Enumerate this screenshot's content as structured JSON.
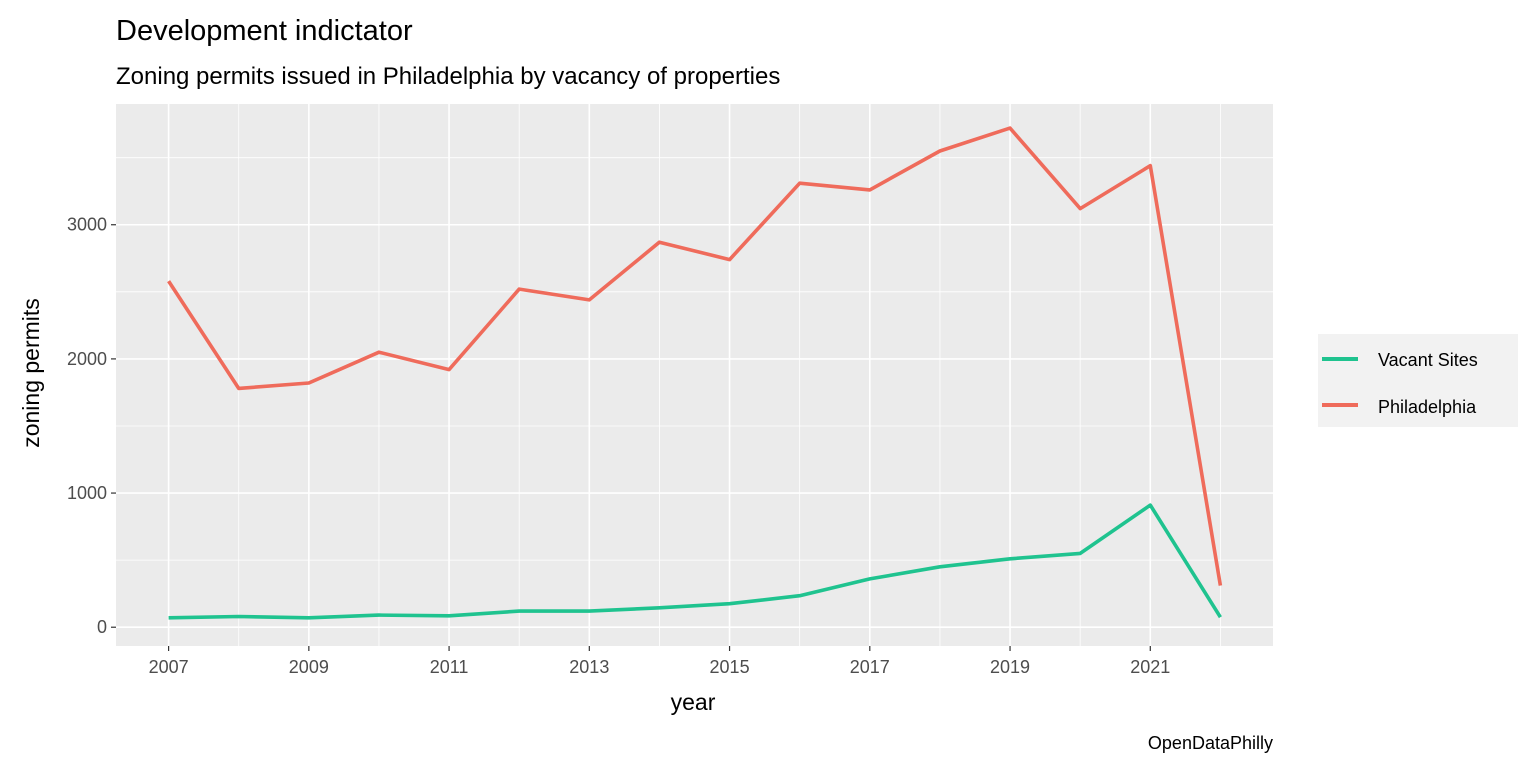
{
  "chart_data": {
    "type": "line",
    "title": "Development indictator",
    "subtitle": "Zoning permits issued in Philadelphia by vacancy of properties",
    "xlabel": "year",
    "ylabel": "zoning permits",
    "caption": "OpenDataPhilly",
    "x": [
      2007,
      2008,
      2009,
      2010,
      2011,
      2012,
      2013,
      2014,
      2015,
      2016,
      2017,
      2018,
      2019,
      2020,
      2021,
      2022
    ],
    "xlim": [
      2006.25,
      2022.75
    ],
    "ylim": [
      -140,
      3900
    ],
    "x_ticks": [
      "2007",
      "2009",
      "2011",
      "2013",
      "2015",
      "2017",
      "2019",
      "2021"
    ],
    "y_ticks": [
      "0",
      "1000",
      "2000",
      "3000"
    ],
    "grid": true,
    "legend_position": "right",
    "series": [
      {
        "name": "Vacant Sites",
        "color": "#1fc38f",
        "values": [
          70,
          80,
          70,
          90,
          85,
          120,
          120,
          145,
          175,
          235,
          360,
          450,
          510,
          550,
          910,
          75
        ]
      },
      {
        "name": "Philadelphia",
        "color": "#ef6b5b",
        "values": [
          2580,
          1780,
          1820,
          2050,
          1920,
          2520,
          2440,
          2870,
          2740,
          3310,
          3260,
          3550,
          3720,
          3120,
          3440,
          310
        ]
      }
    ]
  }
}
